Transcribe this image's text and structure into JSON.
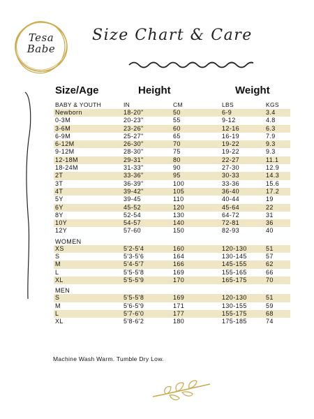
{
  "logo": {
    "line1": "Tesa",
    "line2": "Babe"
  },
  "title": "Size Chart & Care",
  "headers": {
    "size_age": "Size/Age",
    "height": "Height",
    "weight": "Weight",
    "baby_youth": "BABY & YOUTH",
    "in": "IN",
    "cm": "CM",
    "lbs": "LBS",
    "kgs": "KGS"
  },
  "colors": {
    "stripe": "#efe6c6",
    "gold": "#c9a94a"
  },
  "sections": [
    {
      "label": "",
      "rows": [
        {
          "size": "Newborn",
          "in": "18-20\"",
          "cm": "50",
          "lbs": "6-9",
          "kg": "3.4"
        },
        {
          "size": "0-3M",
          "in": "20-23\"",
          "cm": "55",
          "lbs": "9-12",
          "kg": "4.8"
        },
        {
          "size": "3-6M",
          "in": "23-26\"",
          "cm": "60",
          "lbs": "12-16",
          "kg": "6.3"
        },
        {
          "size": "6-9M",
          "in": "25-27\"",
          "cm": "65",
          "lbs": "16-19",
          "kg": "7.9"
        },
        {
          "size": "6-12M",
          "in": "26-30\"",
          "cm": "70",
          "lbs": "19-22",
          "kg": "9.3"
        },
        {
          "size": "9-12M",
          "in": "28-30\"",
          "cm": "75",
          "lbs": "19-22",
          "kg": "9.3"
        },
        {
          "size": "12-18M",
          "in": "29-31\"",
          "cm": "80",
          "lbs": "22-27",
          "kg": "11.1"
        },
        {
          "size": "18-24M",
          "in": "31-33\"",
          "cm": "90",
          "lbs": "27-30",
          "kg": "12.9"
        },
        {
          "size": "2T",
          "in": "33-36\"",
          "cm": "95",
          "lbs": "30-33",
          "kg": "14.3"
        },
        {
          "size": "3T",
          "in": "36-39\"",
          "cm": "100",
          "lbs": "33-36",
          "kg": "15.6"
        },
        {
          "size": "4T",
          "in": "39-42\"",
          "cm": "105",
          "lbs": "36-40",
          "kg": "17.2"
        },
        {
          "size": "5Y",
          "in": "39-45",
          "cm": "110",
          "lbs": "40-44",
          "kg": "19"
        },
        {
          "size": "6Y",
          "in": "45-52",
          "cm": "120",
          "lbs": "45-64",
          "kg": "22"
        },
        {
          "size": "8Y",
          "in": "52-54",
          "cm": "130",
          "lbs": "64-72",
          "kg": "31"
        },
        {
          "size": "10Y",
          "in": "54-57",
          "cm": "140",
          "lbs": "72-81",
          "kg": "36"
        },
        {
          "size": "12Y",
          "in": "57-60",
          "cm": "150",
          "lbs": "82-93",
          "kg": "40"
        }
      ]
    },
    {
      "label": "WOMEN",
      "rows": [
        {
          "size": "XS",
          "in": "5'2-5'4",
          "cm": "160",
          "lbs": "120-130",
          "kg": "51"
        },
        {
          "size": "S",
          "in": "5'3-5'6",
          "cm": "164",
          "lbs": "130-145",
          "kg": "57"
        },
        {
          "size": "M",
          "in": "5'4-5'7",
          "cm": "166",
          "lbs": "145-155",
          "kg": "62"
        },
        {
          "size": "L",
          "in": "5'5-5'8",
          "cm": "169",
          "lbs": "155-165",
          "kg": "66"
        },
        {
          "size": "XL",
          "in": "5'5-5'9",
          "cm": "170",
          "lbs": "165-175",
          "kg": "70"
        }
      ]
    },
    {
      "label": "MEN",
      "rows": [
        {
          "size": "S",
          "in": "5'5-5'8",
          "cm": "169",
          "lbs": "120-130",
          "kg": "51"
        },
        {
          "size": "M",
          "in": "5'6-5'9",
          "cm": "171",
          "lbs": "130-155",
          "kg": "59"
        },
        {
          "size": "L",
          "in": "5'7-6'0",
          "cm": "177",
          "lbs": "155-175",
          "kg": "68"
        },
        {
          "size": "XL",
          "in": "5'8-6'2",
          "cm": "180",
          "lbs": "175-185",
          "kg": "74"
        }
      ]
    }
  ],
  "care": "Machine Wash Warm. Tumble Dry Low.",
  "icons": {
    "logo": "tesa-babe-logo",
    "divider": "wave-divider-icon",
    "branch": "laurel-branch-icon"
  }
}
